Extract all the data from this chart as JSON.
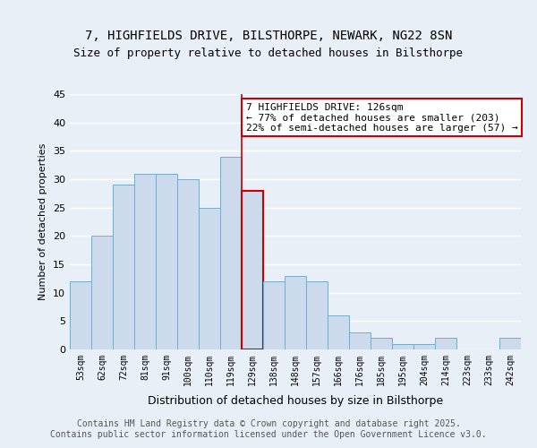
{
  "title_line1": "7, HIGHFIELDS DRIVE, BILSTHORPE, NEWARK, NG22 8SN",
  "title_line2": "Size of property relative to detached houses in Bilsthorpe",
  "xlabel": "Distribution of detached houses by size in Bilsthorpe",
  "ylabel": "Number of detached properties",
  "categories": [
    "53sqm",
    "62sqm",
    "72sqm",
    "81sqm",
    "91sqm",
    "100sqm",
    "110sqm",
    "119sqm",
    "129sqm",
    "138sqm",
    "148sqm",
    "157sqm",
    "166sqm",
    "176sqm",
    "185sqm",
    "195sqm",
    "204sqm",
    "214sqm",
    "223sqm",
    "233sqm",
    "242sqm"
  ],
  "values": [
    12,
    20,
    29,
    31,
    31,
    30,
    25,
    34,
    28,
    12,
    13,
    12,
    6,
    3,
    2,
    1,
    1,
    2,
    0,
    0,
    2
  ],
  "bar_color": "#ccdaec",
  "bar_edgecolor": "#7aaac8",
  "highlight_index": 8,
  "vline_color": "#cc0000",
  "annotation_text": "7 HIGHFIELDS DRIVE: 126sqm\n← 77% of detached houses are smaller (203)\n22% of semi-detached houses are larger (57) →",
  "annotation_box_edgecolor": "#cc0000",
  "annotation_fontsize": 8.0,
  "background_color": "#e8eff7",
  "grid_color": "#ffffff",
  "ylim": [
    0,
    45
  ],
  "yticks": [
    0,
    5,
    10,
    15,
    20,
    25,
    30,
    35,
    40,
    45
  ],
  "footer": "Contains HM Land Registry data © Crown copyright and database right 2025.\nContains public sector information licensed under the Open Government Licence v3.0.",
  "footer_fontsize": 7.0,
  "title_fontsize1": 10,
  "title_fontsize2": 9
}
